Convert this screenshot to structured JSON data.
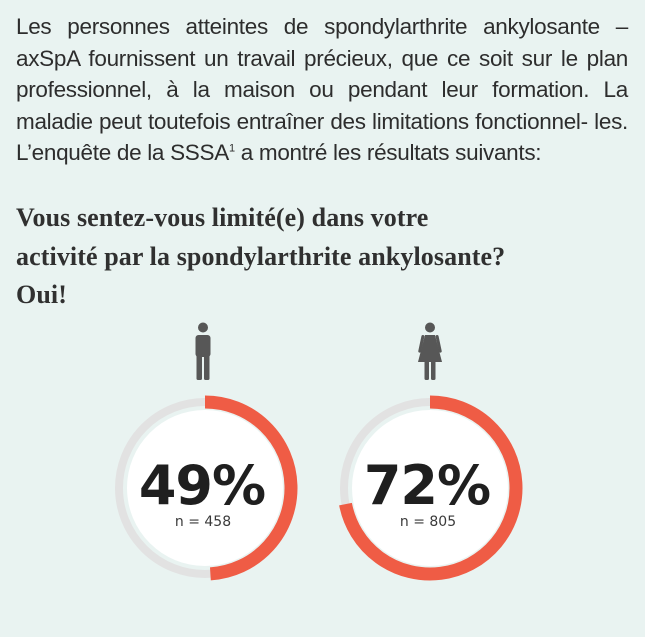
{
  "intro": {
    "line1": "Les personnes atteintes de spondylarthrite ankylosante –",
    "line2": "axSpA fournissent un travail précieux, que ce soit sur le plan",
    "line3": "professionnel, à la maison ou pendant leur formation. La",
    "line4": "maladie peut toutefois entraîner des limitations fonctionnel-",
    "line5_before": "les. L’enquête de la SSSA",
    "footnote_mark": "1",
    "line5_after": " a montré les résultats suivants:"
  },
  "question": {
    "line1": "Vous sentez-vous limité(e) dans votre",
    "line2": "activité par la spondylarthrite ankylosante?",
    "line3": "Oui!"
  },
  "colors": {
    "background": "#e9f3f1",
    "accent": "#ef5c45",
    "track": "#e2e2e2",
    "icon": "#575757",
    "text": "#2d2d2d"
  },
  "chart_data": [
    {
      "type": "pie",
      "icon": "man-icon",
      "values": [
        49,
        51
      ],
      "value_label": "49%",
      "n_label": "n = 458"
    },
    {
      "type": "pie",
      "icon": "woman-icon",
      "values": [
        72,
        28
      ],
      "value_label": "72%",
      "n_label": "n = 805"
    }
  ]
}
